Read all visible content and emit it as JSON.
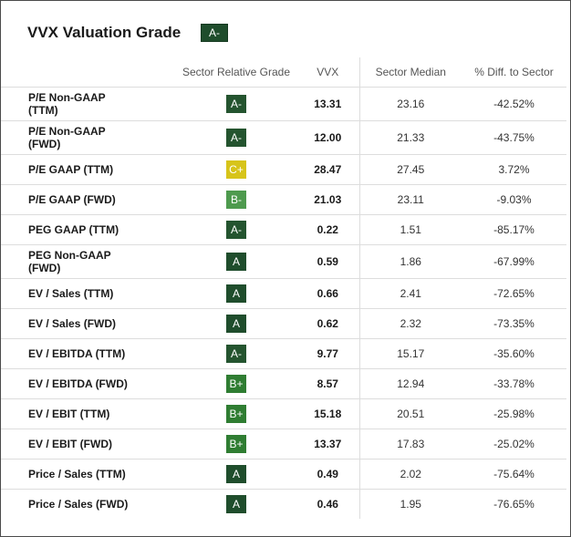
{
  "header": {
    "title": "VVX Valuation Grade",
    "overall_grade": "A-"
  },
  "columns": [
    "",
    "Sector Relative Grade",
    "VVX",
    "Sector Median",
    "% Diff. to Sector"
  ],
  "grade_colors": {
    "A": "#1f4d2c",
    "A-": "#24542f",
    "B+": "#2f7d32",
    "B-": "#4e9a4e",
    "C+": "#d7c41a"
  },
  "rows": [
    {
      "metric": "P/E Non-GAAP (TTM)",
      "grade": "A-",
      "value": "13.31",
      "median": "23.16",
      "diff": "-42.52%"
    },
    {
      "metric": "P/E Non-GAAP (FWD)",
      "grade": "A-",
      "value": "12.00",
      "median": "21.33",
      "diff": "-43.75%"
    },
    {
      "metric": "P/E GAAP (TTM)",
      "grade": "C+",
      "value": "28.47",
      "median": "27.45",
      "diff": "3.72%"
    },
    {
      "metric": "P/E GAAP (FWD)",
      "grade": "B-",
      "value": "21.03",
      "median": "23.11",
      "diff": "-9.03%"
    },
    {
      "metric": "PEG GAAP (TTM)",
      "grade": "A-",
      "value": "0.22",
      "median": "1.51",
      "diff": "-85.17%"
    },
    {
      "metric": "PEG Non-GAAP (FWD)",
      "grade": "A",
      "value": "0.59",
      "median": "1.86",
      "diff": "-67.99%"
    },
    {
      "metric": "EV / Sales (TTM)",
      "grade": "A",
      "value": "0.66",
      "median": "2.41",
      "diff": "-72.65%"
    },
    {
      "metric": "EV / Sales (FWD)",
      "grade": "A",
      "value": "0.62",
      "median": "2.32",
      "diff": "-73.35%"
    },
    {
      "metric": "EV / EBITDA (TTM)",
      "grade": "A-",
      "value": "9.77",
      "median": "15.17",
      "diff": "-35.60%"
    },
    {
      "metric": "EV / EBITDA (FWD)",
      "grade": "B+",
      "value": "8.57",
      "median": "12.94",
      "diff": "-33.78%"
    },
    {
      "metric": "EV / EBIT (TTM)",
      "grade": "B+",
      "value": "15.18",
      "median": "20.51",
      "diff": "-25.98%"
    },
    {
      "metric": "EV / EBIT (FWD)",
      "grade": "B+",
      "value": "13.37",
      "median": "17.83",
      "diff": "-25.02%"
    },
    {
      "metric": "Price / Sales (TTM)",
      "grade": "A",
      "value": "0.49",
      "median": "2.02",
      "diff": "-75.64%"
    },
    {
      "metric": "Price / Sales (FWD)",
      "grade": "A",
      "value": "0.46",
      "median": "1.95",
      "diff": "-76.65%"
    }
  ]
}
